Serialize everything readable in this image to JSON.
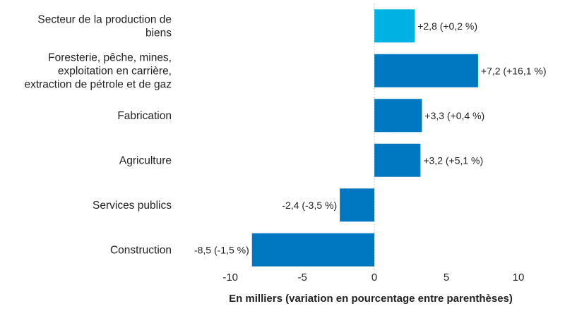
{
  "chart_data": {
    "type": "bar",
    "orientation": "horizontal",
    "xlabel": "En milliers (variation en pourcentage entre parenthèses)",
    "xlim": [
      -13,
      12.5
    ],
    "xticks": [
      -10,
      -5,
      0,
      5,
      10
    ],
    "xtick_labels": [
      "-10",
      "-5",
      "0",
      "5",
      "10"
    ],
    "grid": false,
    "categories": [
      [
        "Secteur de la production de",
        "biens"
      ],
      [
        "Foresterie, pêche, mines,",
        "exploitation en carrière,",
        "extraction de pétrole et de gaz"
      ],
      [
        "Fabrication"
      ],
      [
        "Agriculture"
      ],
      [
        "Services publics"
      ],
      [
        "Construction"
      ]
    ],
    "values": [
      2.8,
      7.2,
      3.3,
      3.2,
      -2.4,
      -8.5
    ],
    "data_labels": [
      "+2,8 (+0,2 %)",
      "+7,2 (+16,1 %)",
      "+3,3 (+0,4 %)",
      "+3,2 (+5,1 %)",
      "-2,4 (-3,5 %)",
      "-8,5 (-1,5 %)"
    ],
    "colors": [
      "#00b2e3",
      "#0078c1",
      "#0078c1",
      "#0078c1",
      "#0078c1",
      "#0078c1"
    ]
  }
}
